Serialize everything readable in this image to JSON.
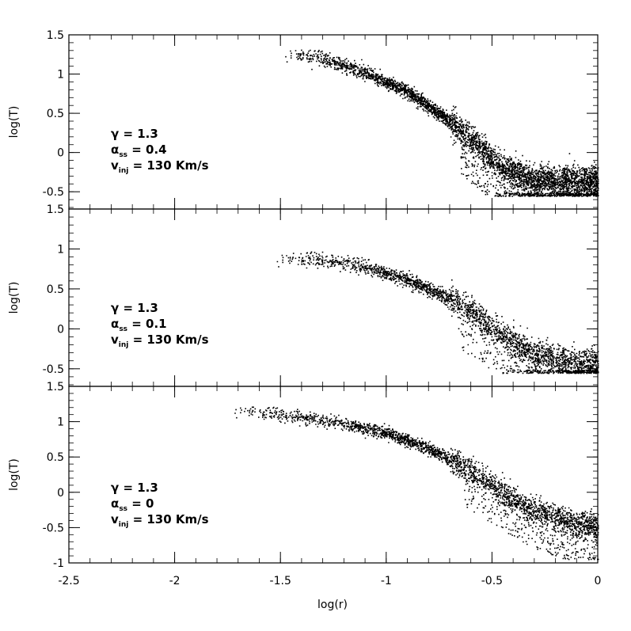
{
  "chart_data": {
    "type": "scatter",
    "x_label": "log(r)",
    "x_range": [
      -2.5,
      0
    ],
    "x_ticks": [
      "-2.5",
      "-2",
      "-1.5",
      "-1",
      "-0.5",
      "0"
    ],
    "marker_color": "#000000",
    "panels": [
      {
        "id": "top",
        "y_label": "log(T)",
        "y_range": [
          -0.6,
          1.5
        ],
        "y_ticks": [
          "1.5",
          "1",
          "0.5",
          "0",
          "-0.5"
        ],
        "annotation": {
          "gamma": "γ = 1.3",
          "alpha_sym": "α",
          "alpha_sub": "ss",
          "alpha_val": " = 0.4",
          "v_sym": "v",
          "v_sub": "inj",
          "v_val": " = 130 Km/s"
        },
        "ridge": [
          [
            -1.48,
            1.28
          ],
          [
            -1.3,
            1.2
          ],
          [
            -1.1,
            1.02
          ],
          [
            -0.9,
            0.78
          ],
          [
            -0.7,
            0.4
          ],
          [
            -0.55,
            0.05
          ],
          [
            -0.45,
            -0.2
          ],
          [
            -0.3,
            -0.34
          ],
          [
            -0.15,
            -0.35
          ],
          [
            0,
            -0.36
          ]
        ],
        "x_start": -1.48
      },
      {
        "id": "middle",
        "y_label": "log(T)",
        "y_range": [
          -0.6,
          1.5
        ],
        "y_ticks": [
          "1.5",
          "1",
          "0.5",
          "0",
          "-0.5"
        ],
        "annotation": {
          "gamma": "γ = 1.3",
          "alpha_sym": "α",
          "alpha_sub": "ss",
          "alpha_val": " = 0.1",
          "v_sym": "v",
          "v_sub": "inj",
          "v_val": " = 130 Km/s"
        },
        "ridge": [
          [
            -1.52,
            0.9
          ],
          [
            -1.3,
            0.86
          ],
          [
            -1.1,
            0.78
          ],
          [
            -0.9,
            0.62
          ],
          [
            -0.7,
            0.38
          ],
          [
            -0.55,
            0.14
          ],
          [
            -0.45,
            -0.1
          ],
          [
            -0.3,
            -0.3
          ],
          [
            -0.15,
            -0.4
          ],
          [
            0,
            -0.45
          ]
        ],
        "x_start": -1.52
      },
      {
        "id": "bottom",
        "y_label": "log(T)",
        "y_range": [
          -1,
          1.5
        ],
        "y_ticks": [
          "1.5",
          "1",
          "0.5",
          "0",
          "-0.5",
          "-1"
        ],
        "annotation": {
          "gamma": "γ = 1.3",
          "alpha_sym": "α",
          "alpha_sub": "ss",
          "alpha_val": " = 0",
          "v_sym": "v",
          "v_sub": "inj",
          "v_val": " = 130 Km/s"
        },
        "ridge": [
          [
            -1.72,
            1.18
          ],
          [
            -1.5,
            1.1
          ],
          [
            -1.2,
            0.98
          ],
          [
            -1,
            0.85
          ],
          [
            -0.8,
            0.62
          ],
          [
            -0.6,
            0.3
          ],
          [
            -0.45,
            0.0
          ],
          [
            -0.3,
            -0.25
          ],
          [
            -0.15,
            -0.4
          ],
          [
            0,
            -0.48
          ]
        ],
        "x_start": -1.72
      }
    ]
  }
}
